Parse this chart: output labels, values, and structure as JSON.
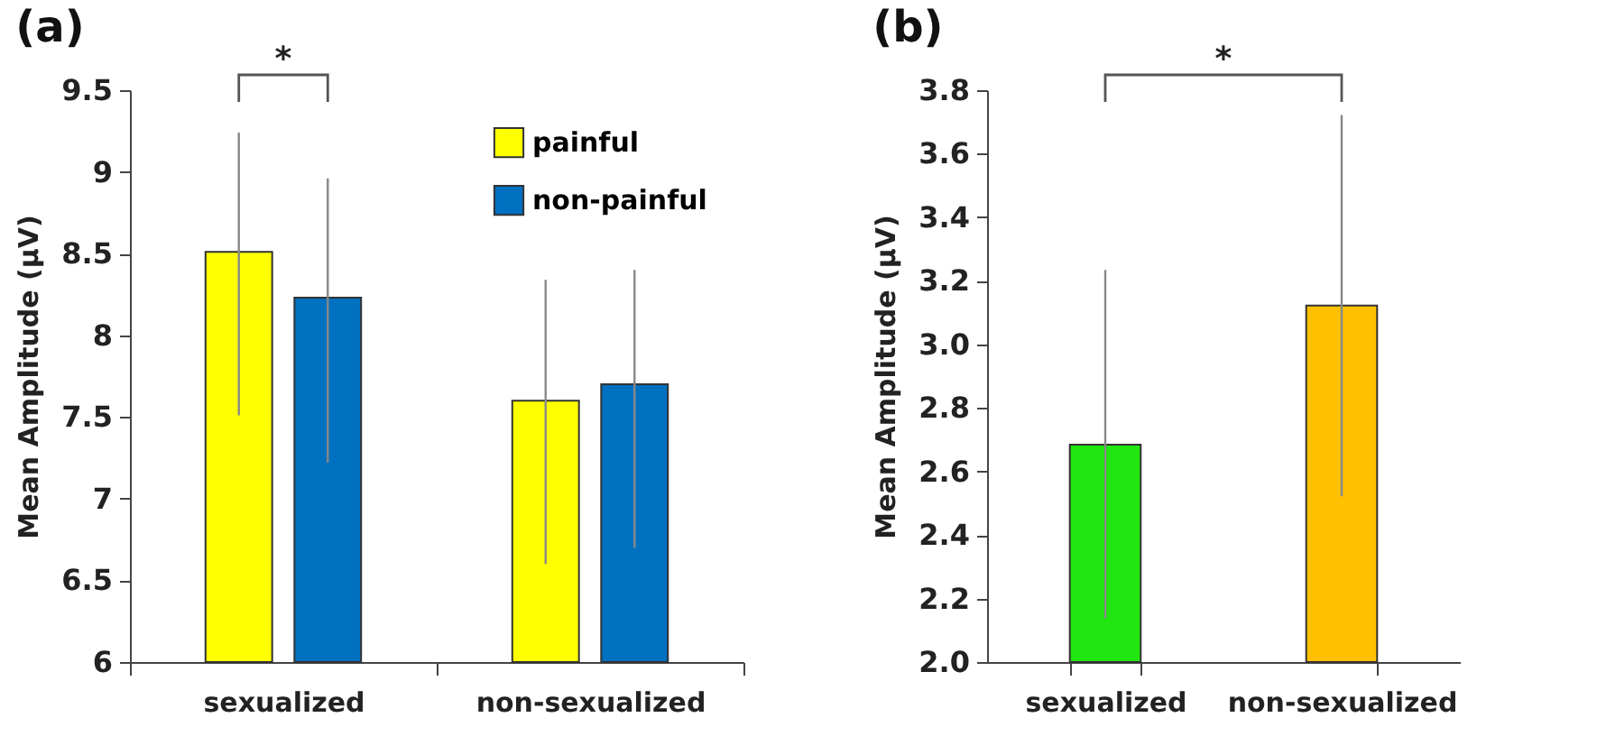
{
  "chart_data": [
    {
      "type": "bar",
      "title": "(a)",
      "ylabel": "Mean Amplitude (μV)",
      "categories": [
        "sexualized",
        "non-sexualized"
      ],
      "series": [
        {
          "name": "painful",
          "color": "#ffff00",
          "values": [
            8.51,
            7.6
          ],
          "errors": [
            [
              7.51,
              9.24
            ],
            [
              6.6,
              8.34
            ]
          ]
        },
        {
          "name": "non-painful",
          "color": "#0070c0",
          "values": [
            8.23,
            7.7
          ],
          "errors": [
            [
              7.22,
              8.96
            ],
            [
              6.7,
              8.4
            ]
          ]
        }
      ],
      "ylim": [
        6,
        9.5
      ],
      "yticks": [
        6,
        6.5,
        7,
        7.5,
        8,
        8.5,
        9,
        9.5
      ],
      "legend": "top right",
      "annotations": [
        "*"
      ]
    },
    {
      "type": "bar",
      "title": "(b)",
      "ylabel": "Mean Amplitude (μV)",
      "categories": [
        "sexualized",
        "non-sexualized"
      ],
      "values": [
        2.684,
        3.122
      ],
      "colors": [
        "#22e60f",
        "#ffc000"
      ],
      "errors": [
        [
          2.137,
          3.234
        ],
        [
          2.522,
          3.722
        ]
      ],
      "ylim": [
        2,
        3.8
      ],
      "yticks": [
        {
          "value": 2,
          "label": "2.0"
        },
        {
          "value": 2.2,
          "label": "2.2"
        },
        {
          "value": 2.4,
          "label": "2.4"
        },
        {
          "value": 2.6,
          "label": "2.6"
        },
        {
          "value": 2.8,
          "label": "2.8"
        },
        {
          "value": 3,
          "label": "3.0"
        },
        {
          "value": 3.2,
          "label": "3.2"
        },
        {
          "value": 3.4,
          "label": "3.4"
        },
        {
          "value": 3.6,
          "label": "3.6"
        },
        {
          "value": 3.8,
          "label": "3.8"
        }
      ],
      "annotations": [
        "*"
      ]
    }
  ]
}
